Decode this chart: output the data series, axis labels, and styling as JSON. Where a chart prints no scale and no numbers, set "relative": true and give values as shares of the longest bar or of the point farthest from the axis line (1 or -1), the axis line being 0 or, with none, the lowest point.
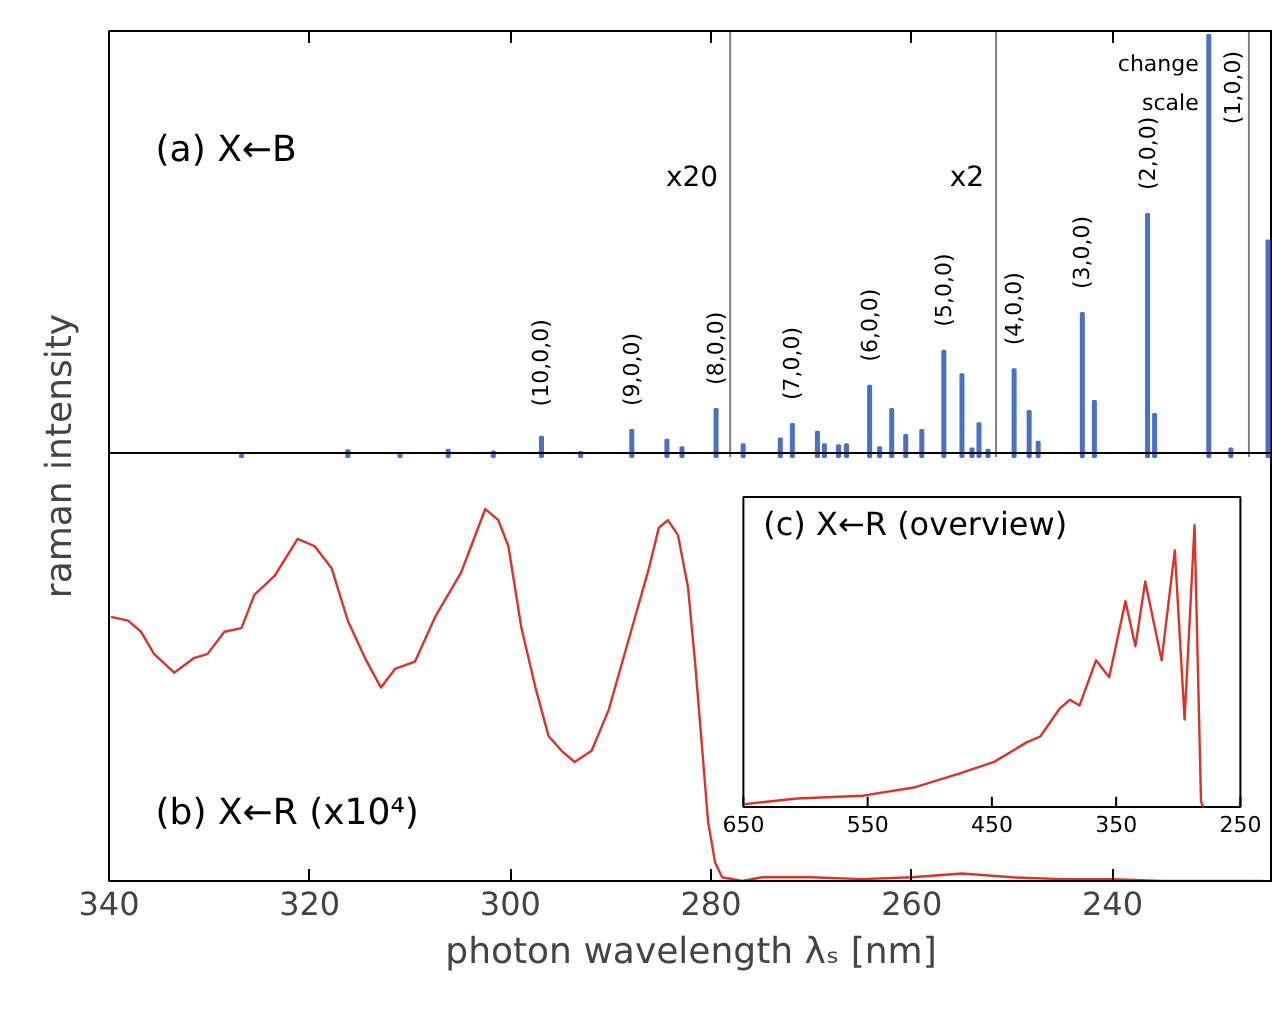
{
  "chart_data": [
    {
      "type": "bar",
      "title": "(a) X←B",
      "ylabel": "raman intensity",
      "relative": true,
      "xlim": [
        340,
        224
      ],
      "xticks": [
        340,
        320,
        300,
        280,
        260,
        240
      ],
      "tick_labels": false,
      "color": "#4a72c0",
      "x": [
        326.8,
        316.2,
        311.0,
        306.2,
        301.7,
        296.9,
        293.0,
        287.9,
        284.4,
        282.9,
        279.5,
        276.8,
        273.1,
        271.9,
        269.4,
        268.7,
        267.3,
        266.5,
        264.2,
        263.2,
        262.0,
        260.6,
        259.0,
        256.8,
        255.0,
        254.0,
        253.3,
        252.4,
        249.8,
        248.3,
        247.4,
        243.0,
        241.8,
        236.5,
        235.8,
        230.4,
        228.2,
        224.5
      ],
      "values": [
        0.005,
        0.016,
        0.008,
        0.017,
        0.013,
        0.048,
        0.012,
        0.064,
        0.041,
        0.023,
        0.114,
        0.03,
        0.044,
        0.078,
        0.06,
        0.03,
        0.028,
        0.03,
        0.169,
        0.023,
        0.114,
        0.052,
        0.064,
        0.252,
        0.196,
        0.02,
        0.08,
        0.017,
        0.208,
        0.109,
        0.036,
        0.341,
        0.133,
        0.576,
        0.102,
        1.0,
        0.02,
        0.513
      ],
      "ref_lines": [
        {
          "axis": "x",
          "value": 278.1,
          "color": "#808080",
          "label": "x20"
        },
        {
          "axis": "x",
          "value": 251.6,
          "color": "#808080",
          "label": "x2"
        },
        {
          "axis": "x",
          "value": 226.4,
          "color": "#808080",
          "label": "change\nscale"
        }
      ],
      "annotations": [
        {
          "text": "(10,0,0)",
          "x": 296.9,
          "y": 0.048
        },
        {
          "text": "(9,0,0)",
          "x": 287.9,
          "y": 0.064
        },
        {
          "text": "(8,0,0)",
          "x": 279.5,
          "y": 0.114
        },
        {
          "text": "(7,0,0)",
          "x": 271.9,
          "y": 0.078
        },
        {
          "text": "(6,0,0)",
          "x": 264.2,
          "y": 0.169
        },
        {
          "text": "(5,0,0)",
          "x": 256.8,
          "y": 0.252
        },
        {
          "text": "(4,0,0)",
          "x": 249.8,
          "y": 0.208
        },
        {
          "text": "(3,0,0)",
          "x": 243.0,
          "y": 0.341
        },
        {
          "text": "(2,0,0)",
          "x": 236.5,
          "y": 0.576
        },
        {
          "text": "(1,0,0)",
          "x": 230.4,
          "y": 1.0
        }
      ]
    },
    {
      "type": "line",
      "title": "(b) X←R (x10⁴)",
      "xlabel": "photon wavelength λₛ [nm]",
      "relative": true,
      "xlim": [
        340,
        224
      ],
      "xticks": [
        340,
        320,
        300,
        280,
        260,
        240
      ],
      "tick_labels": "x",
      "color": "#d8342a",
      "x": [
        339.8,
        338.1,
        336.8,
        335.5,
        333.5,
        331.5,
        330.2,
        328.5,
        326.8,
        325.5,
        323.5,
        321.2,
        319.5,
        317.8,
        316.2,
        314.5,
        312.9,
        311.5,
        309.5,
        307.5,
        304.9,
        302.5,
        301.2,
        300.2,
        298.9,
        297.5,
        296.2,
        294.9,
        293.6,
        291.9,
        290.2,
        288.2,
        286.2,
        285.2,
        284.3,
        283.3,
        282.3,
        281.6,
        280.9,
        280.3,
        279.6,
        278.9,
        276.9,
        274.9,
        270,
        265,
        260,
        255,
        250,
        245,
        240,
        235,
        230,
        225
      ],
      "values": [
        0.71,
        0.7,
        0.67,
        0.61,
        0.56,
        0.6,
        0.61,
        0.67,
        0.68,
        0.77,
        0.82,
        0.92,
        0.9,
        0.84,
        0.7,
        0.6,
        0.52,
        0.57,
        0.59,
        0.71,
        0.83,
        1.0,
        0.97,
        0.9,
        0.68,
        0.52,
        0.39,
        0.35,
        0.32,
        0.35,
        0.46,
        0.65,
        0.84,
        0.95,
        0.97,
        0.93,
        0.79,
        0.59,
        0.36,
        0.16,
        0.05,
        0.01,
        0.0,
        0.01,
        0.01,
        0.005,
        0.01,
        0.02,
        0.01,
        0.005,
        0.005,
        0.0,
        0.0,
        0.0
      ]
    },
    {
      "type": "line",
      "title": "(c) X←R (overview)",
      "relative": true,
      "xlim": [
        650,
        250
      ],
      "xticks": [
        650,
        550,
        450,
        350,
        250
      ],
      "color": "#d8342a",
      "x": [
        648.9,
        606.7,
        553.8,
        511.6,
        475.1,
        448.2,
        421.7,
        411.1,
        395.2,
        387.3,
        379.4,
        366.2,
        355.6,
        342.5,
        334.5,
        326.6,
        313.4,
        302.8,
        294.9,
        286.9,
        281.7,
        280.0
      ],
      "values": [
        0.01,
        0.03,
        0.04,
        0.07,
        0.12,
        0.16,
        0.23,
        0.25,
        0.35,
        0.38,
        0.36,
        0.52,
        0.46,
        0.73,
        0.57,
        0.8,
        0.52,
        0.91,
        0.31,
        1.0,
        0.02,
        0.0
      ]
    }
  ]
}
